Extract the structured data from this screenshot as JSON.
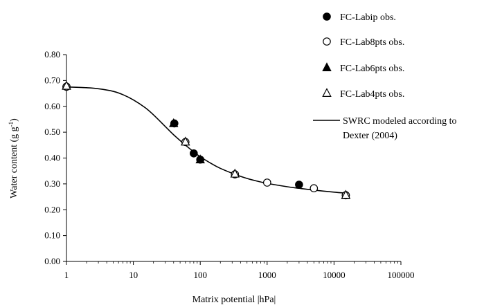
{
  "chart_data": {
    "type": "scatter",
    "xlabel": "Matrix potential |hPa|",
    "ylabel": "Water content (g g",
    "ylabel_sup": "-1",
    "ylabel_tail": ")",
    "xscale": "log",
    "xlim": [
      1,
      100000
    ],
    "ylim": [
      0,
      0.8
    ],
    "x_ticks": [
      "1",
      "10",
      "100",
      "1000",
      "10000",
      "100000"
    ],
    "y_ticks": [
      "0.00",
      "0.10",
      "0.20",
      "0.30",
      "0.40",
      "0.50",
      "0.60",
      "0.70",
      "0.80"
    ],
    "grid": false,
    "legend_position": "top-right",
    "series": [
      {
        "name": "FC-Labip obs.",
        "marker": "filled-circle",
        "points": [
          [
            1,
            0.676
          ],
          [
            41,
            0.534
          ],
          [
            80,
            0.418
          ],
          [
            100,
            0.394
          ],
          [
            330,
            0.337
          ],
          [
            3000,
            0.297
          ],
          [
            15000,
            0.256
          ]
        ]
      },
      {
        "name": "FC-Lab8pts obs.",
        "marker": "open-circle",
        "points": [
          [
            1,
            0.676
          ],
          [
            60,
            0.462
          ],
          [
            330,
            0.337
          ],
          [
            1000,
            0.305
          ],
          [
            5000,
            0.283
          ],
          [
            15000,
            0.256
          ]
        ]
      },
      {
        "name": "FC-Lab6pts obs.",
        "marker": "filled-triangle",
        "points": [
          [
            1,
            0.678
          ],
          [
            40,
            0.533
          ],
          [
            100,
            0.393
          ],
          [
            15000,
            0.255
          ]
        ]
      },
      {
        "name": "FC-Lab4pts obs.",
        "marker": "open-triangle",
        "points": [
          [
            1,
            0.678
          ],
          [
            60,
            0.462
          ],
          [
            330,
            0.338
          ],
          [
            15000,
            0.256
          ]
        ]
      }
    ],
    "curve": {
      "name_lines": [
        "SWRC modeled according to",
        "Dexter (2004)"
      ],
      "points": [
        [
          1,
          0.675
        ],
        [
          2,
          0.672
        ],
        [
          3,
          0.668
        ],
        [
          5,
          0.658
        ],
        [
          7,
          0.645
        ],
        [
          10,
          0.625
        ],
        [
          15,
          0.595
        ],
        [
          20,
          0.567
        ],
        [
          30,
          0.522
        ],
        [
          40,
          0.49
        ],
        [
          60,
          0.45
        ],
        [
          80,
          0.424
        ],
        [
          100,
          0.405
        ],
        [
          150,
          0.377
        ],
        [
          200,
          0.36
        ],
        [
          330,
          0.337
        ],
        [
          500,
          0.321
        ],
        [
          700,
          0.311
        ],
        [
          1000,
          0.302
        ],
        [
          2000,
          0.289
        ],
        [
          3000,
          0.283
        ],
        [
          5000,
          0.276
        ],
        [
          10000,
          0.268
        ],
        [
          15000,
          0.264
        ]
      ]
    }
  }
}
